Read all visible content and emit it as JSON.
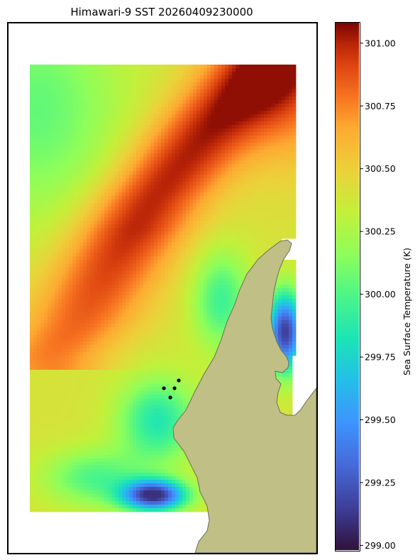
{
  "chart_data": {
    "type": "heatmap",
    "title": "Himawari-9 SST 20260409230000",
    "colorbar": {
      "label": "Sea Surface Temperature (K)",
      "vmin": 298.98,
      "vmax": 301.08,
      "ticks": [
        "299.00",
        "299.25",
        "299.50",
        "299.75",
        "300.00",
        "300.25",
        "300.50",
        "300.75",
        "301.00"
      ],
      "tick_values": [
        299.0,
        299.25,
        299.5,
        299.75,
        300.0,
        300.25,
        300.5,
        300.75,
        301.0
      ],
      "colormap": "turbo"
    },
    "field_summary": {
      "warm_band_max_K": 301.05,
      "cool_patch_min_K": 299.1,
      "background_K": 300.4
    },
    "markers": {
      "count": 4,
      "color": "#000000"
    },
    "land_color": "#bfbf86",
    "land_edge_color": "#6e6e5a",
    "axes": {
      "grid": false,
      "ticks_visible": false
    }
  }
}
